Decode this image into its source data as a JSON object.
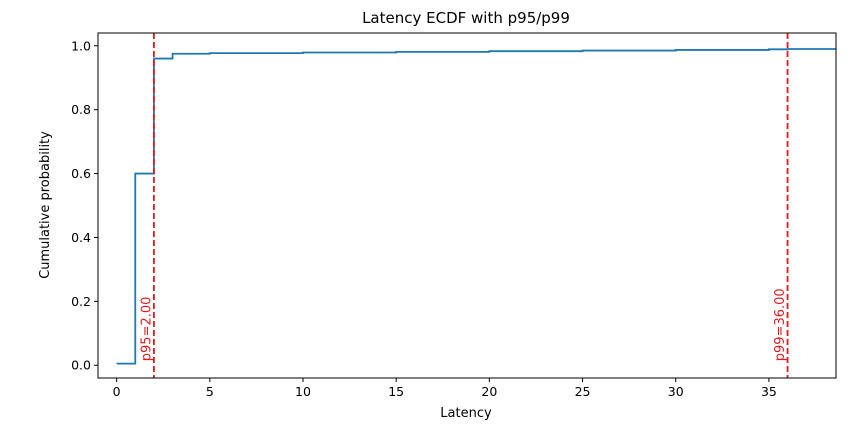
{
  "chart_data": {
    "type": "line",
    "title": "Latency ECDF with p95/p99",
    "xlabel": "Latency",
    "ylabel": "Cumulative probability",
    "xlim": [
      -1,
      38.6
    ],
    "ylim": [
      -0.04,
      1.04
    ],
    "xticks": [
      0,
      5,
      10,
      15,
      20,
      25,
      30,
      35
    ],
    "yticks": [
      0.0,
      0.2,
      0.4,
      0.6,
      0.8,
      1.0
    ],
    "xtick_labels": [
      "0",
      "5",
      "10",
      "15",
      "20",
      "25",
      "30",
      "35"
    ],
    "ytick_labels": [
      "0.0",
      "0.2",
      "0.4",
      "0.6",
      "0.8",
      "1.0"
    ],
    "grid": false,
    "series": [
      {
        "color": "#1f77b4",
        "step": "post",
        "x": [
          0,
          1,
          2,
          3,
          5,
          10,
          15,
          20,
          25,
          30,
          35,
          36,
          38.6
        ],
        "y": [
          0.005,
          0.6,
          0.96,
          0.975,
          0.977,
          0.979,
          0.981,
          0.983,
          0.985,
          0.987,
          0.989,
          0.99,
          0.991
        ]
      }
    ],
    "reference_lines": [
      {
        "x": 2.0,
        "label": "p95=2.00",
        "color": "#e31a1c",
        "style": "dashed"
      },
      {
        "x": 36.0,
        "label": "p99=36.00",
        "color": "#e31a1c",
        "style": "dashed"
      }
    ]
  }
}
